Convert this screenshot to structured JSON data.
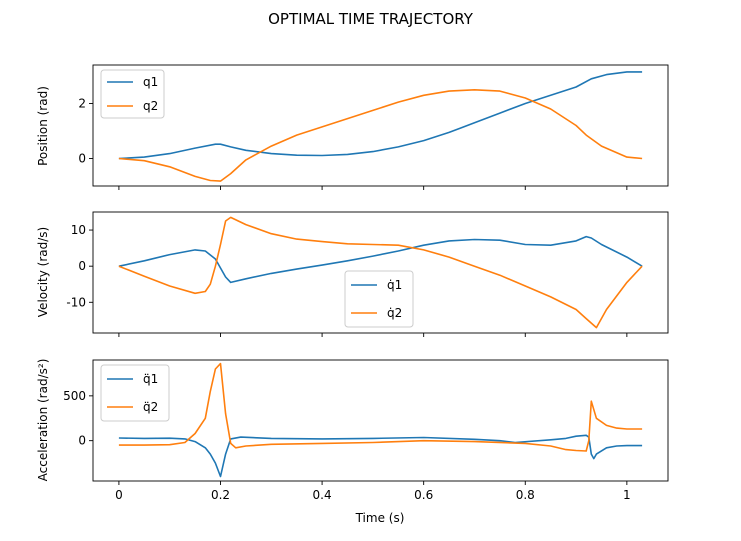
{
  "figure": {
    "title": "OPTIMAL TIME TRAJECTORY",
    "xlabel": "Time (s)"
  },
  "colors": {
    "series1": "#1f77b4",
    "series2": "#ff7f0e",
    "axes": "#000000",
    "legend_border": "#cccccc"
  },
  "chart_data": [
    {
      "type": "line",
      "ylabel": "Position (rad)",
      "xlim": [
        -0.051,
        1.081
      ],
      "ylim": [
        -1.0,
        3.4
      ],
      "xticks": [
        0.0,
        0.2,
        0.4,
        0.6,
        0.8,
        1.0
      ],
      "yticks": [
        0,
        2
      ],
      "grid": false,
      "legend_position": "top-left",
      "series": [
        {
          "name": "q1",
          "color": "#1f77b4",
          "x": [
            0.0,
            0.05,
            0.1,
            0.15,
            0.19,
            0.2,
            0.22,
            0.25,
            0.3,
            0.35,
            0.4,
            0.45,
            0.5,
            0.55,
            0.6,
            0.65,
            0.7,
            0.75,
            0.8,
            0.85,
            0.9,
            0.93,
            0.96,
            1.0,
            1.03
          ],
          "y": [
            0.0,
            0.05,
            0.18,
            0.38,
            0.52,
            0.52,
            0.42,
            0.3,
            0.18,
            0.12,
            0.11,
            0.15,
            0.25,
            0.42,
            0.65,
            0.95,
            1.3,
            1.65,
            2.0,
            2.3,
            2.6,
            2.9,
            3.05,
            3.15,
            3.15
          ]
        },
        {
          "name": "q2",
          "color": "#ff7f0e",
          "x": [
            0.0,
            0.05,
            0.1,
            0.15,
            0.18,
            0.2,
            0.22,
            0.25,
            0.3,
            0.35,
            0.4,
            0.45,
            0.5,
            0.55,
            0.6,
            0.65,
            0.7,
            0.75,
            0.8,
            0.85,
            0.9,
            0.92,
            0.95,
            1.0,
            1.03
          ],
          "y": [
            0.0,
            -0.08,
            -0.3,
            -0.65,
            -0.8,
            -0.82,
            -0.55,
            -0.05,
            0.45,
            0.85,
            1.15,
            1.45,
            1.75,
            2.05,
            2.3,
            2.45,
            2.5,
            2.45,
            2.2,
            1.8,
            1.2,
            0.85,
            0.45,
            0.05,
            0.0
          ]
        }
      ]
    },
    {
      "type": "line",
      "ylabel": "Velocity (rad/s)",
      "xlim": [
        -0.051,
        1.081
      ],
      "ylim": [
        -18.5,
        15.0
      ],
      "xticks": [
        0.0,
        0.2,
        0.4,
        0.6,
        0.8,
        1.0
      ],
      "yticks": [
        -10,
        0,
        10
      ],
      "grid": false,
      "legend_position": "lower-center",
      "series": [
        {
          "name": "q̇1",
          "color": "#1f77b4",
          "x": [
            0.0,
            0.05,
            0.1,
            0.15,
            0.17,
            0.19,
            0.2,
            0.21,
            0.22,
            0.25,
            0.3,
            0.35,
            0.4,
            0.45,
            0.5,
            0.55,
            0.6,
            0.65,
            0.7,
            0.75,
            0.8,
            0.85,
            0.9,
            0.92,
            0.93,
            0.95,
            1.0,
            1.03
          ],
          "y": [
            0.0,
            1.5,
            3.2,
            4.5,
            4.2,
            2.0,
            -0.5,
            -3.0,
            -4.5,
            -3.5,
            -2.0,
            -0.8,
            0.3,
            1.5,
            2.8,
            4.2,
            5.8,
            7.0,
            7.4,
            7.2,
            6.0,
            5.8,
            7.0,
            8.2,
            7.8,
            6.0,
            2.5,
            0.0
          ]
        },
        {
          "name": "q̇2",
          "color": "#ff7f0e",
          "x": [
            0.0,
            0.05,
            0.1,
            0.15,
            0.17,
            0.18,
            0.19,
            0.2,
            0.21,
            0.22,
            0.25,
            0.3,
            0.35,
            0.4,
            0.45,
            0.5,
            0.55,
            0.6,
            0.65,
            0.7,
            0.75,
            0.8,
            0.85,
            0.9,
            0.92,
            0.94,
            0.96,
            1.0,
            1.03
          ],
          "y": [
            0.0,
            -2.8,
            -5.5,
            -7.5,
            -7.0,
            -5.0,
            0.0,
            6.0,
            12.5,
            13.5,
            11.5,
            9.0,
            7.5,
            6.8,
            6.2,
            6.0,
            5.8,
            4.5,
            2.5,
            0.0,
            -2.5,
            -5.5,
            -8.5,
            -12.0,
            -14.5,
            -17.0,
            -12.0,
            -4.5,
            0.0
          ]
        }
      ]
    },
    {
      "type": "line",
      "ylabel": "Acceleration (rad/s²)",
      "xlim": [
        -0.051,
        1.081
      ],
      "ylim": [
        -450,
        900
      ],
      "xticks": [
        0.0,
        0.2,
        0.4,
        0.6,
        0.8,
        1.0
      ],
      "yticks": [
        0,
        500
      ],
      "grid": false,
      "legend_position": "top-left",
      "series": [
        {
          "name": "q̈1",
          "color": "#1f77b4",
          "x": [
            0.0,
            0.05,
            0.1,
            0.13,
            0.15,
            0.17,
            0.18,
            0.19,
            0.2,
            0.21,
            0.22,
            0.24,
            0.3,
            0.4,
            0.5,
            0.6,
            0.7,
            0.75,
            0.78,
            0.85,
            0.88,
            0.9,
            0.92,
            0.925,
            0.93,
            0.935,
            0.94,
            0.96,
            0.98,
            1.0,
            1.03
          ],
          "y": [
            30,
            25,
            28,
            20,
            -10,
            -80,
            -150,
            -250,
            -400,
            -150,
            20,
            40,
            25,
            20,
            25,
            35,
            15,
            0,
            -20,
            10,
            25,
            50,
            60,
            40,
            -150,
            -200,
            -150,
            -80,
            -60,
            -55,
            -55
          ]
        },
        {
          "name": "q̈2",
          "color": "#ff7f0e",
          "x": [
            0.0,
            0.05,
            0.1,
            0.13,
            0.15,
            0.17,
            0.18,
            0.19,
            0.2,
            0.21,
            0.22,
            0.23,
            0.25,
            0.3,
            0.4,
            0.5,
            0.6,
            0.7,
            0.8,
            0.85,
            0.88,
            0.9,
            0.92,
            0.925,
            0.93,
            0.94,
            0.96,
            0.98,
            1.0,
            1.03
          ],
          "y": [
            -50,
            -50,
            -45,
            -20,
            80,
            250,
            550,
            800,
            860,
            300,
            -30,
            -80,
            -60,
            -40,
            -30,
            -20,
            0,
            -10,
            -30,
            -60,
            -100,
            -110,
            -115,
            0,
            440,
            250,
            170,
            140,
            130,
            130
          ]
        }
      ]
    }
  ]
}
